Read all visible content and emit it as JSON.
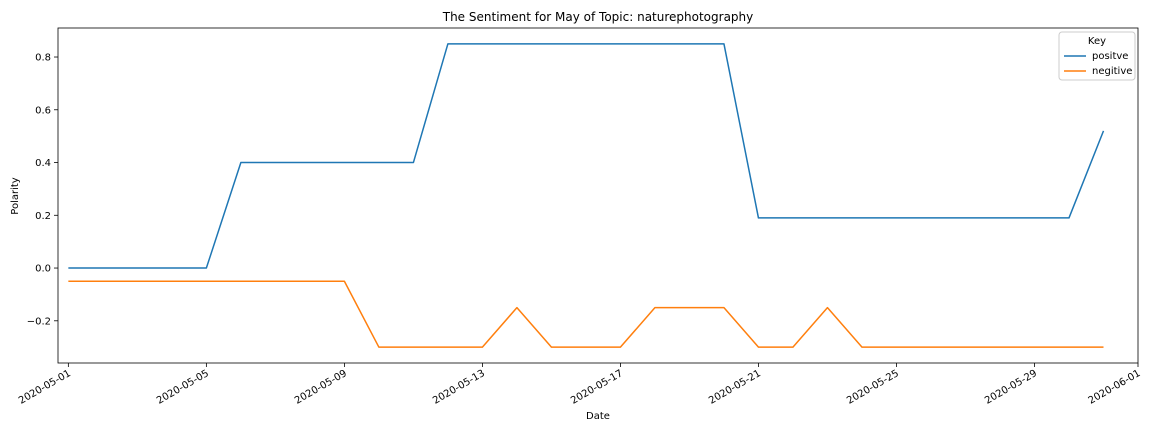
{
  "chart_data": {
    "type": "line",
    "title": "The Sentiment for May of Topic: naturephotography",
    "xlabel": "Date",
    "ylabel": "Polarity",
    "x_start": "2020-05-01",
    "x_days": 31,
    "xlim_days": [
      -0.3,
      31
    ],
    "ylim": [
      -0.36,
      0.91
    ],
    "y_ticks": [
      -0.2,
      0.0,
      0.2,
      0.4,
      0.6,
      0.8
    ],
    "y_tick_labels": [
      "−0.2",
      "0.0",
      "0.2",
      "0.4",
      "0.6",
      "0.8"
    ],
    "x_ticks_days": [
      0,
      4,
      8,
      12,
      16,
      20,
      24,
      28,
      31
    ],
    "x_tick_labels": [
      "2020-05-01",
      "2020-05-05",
      "2020-05-09",
      "2020-05-13",
      "2020-05-17",
      "2020-05-21",
      "2020-05-25",
      "2020-05-29",
      "2020-06-01"
    ],
    "legend_title": "Key",
    "legend_position": "top-right",
    "series": [
      {
        "name": "positve",
        "color": "#1f77b4",
        "x_days": [
          0,
          1,
          2,
          3,
          4,
          5,
          6,
          7,
          8,
          9,
          10,
          11,
          12,
          13,
          14,
          15,
          16,
          17,
          18,
          19,
          20,
          21,
          22,
          23,
          24,
          25,
          26,
          27,
          28,
          29,
          30
        ],
        "values": [
          0.0,
          0.0,
          0.0,
          0.0,
          0.0,
          0.4,
          0.4,
          0.4,
          0.4,
          0.4,
          0.4,
          0.85,
          0.85,
          0.85,
          0.85,
          0.85,
          0.85,
          0.85,
          0.85,
          0.85,
          0.19,
          0.19,
          0.19,
          0.19,
          0.19,
          0.19,
          0.19,
          0.19,
          0.19,
          0.19,
          0.52
        ]
      },
      {
        "name": "negitive",
        "color": "#ff7f0e",
        "x_days": [
          0,
          1,
          2,
          3,
          4,
          5,
          6,
          7,
          8,
          9,
          10,
          11,
          12,
          13,
          14,
          15,
          16,
          17,
          18,
          19,
          20,
          21,
          22,
          23,
          24,
          25,
          26,
          27,
          28,
          29,
          30
        ],
        "values": [
          -0.05,
          -0.05,
          -0.05,
          -0.05,
          -0.05,
          -0.05,
          -0.05,
          -0.05,
          -0.05,
          -0.3,
          -0.3,
          -0.3,
          -0.3,
          -0.15,
          -0.3,
          -0.3,
          -0.3,
          -0.15,
          -0.15,
          -0.15,
          -0.3,
          -0.3,
          -0.15,
          -0.3,
          -0.3,
          -0.3,
          -0.3,
          -0.3,
          -0.3,
          -0.3,
          -0.3
        ]
      }
    ]
  }
}
